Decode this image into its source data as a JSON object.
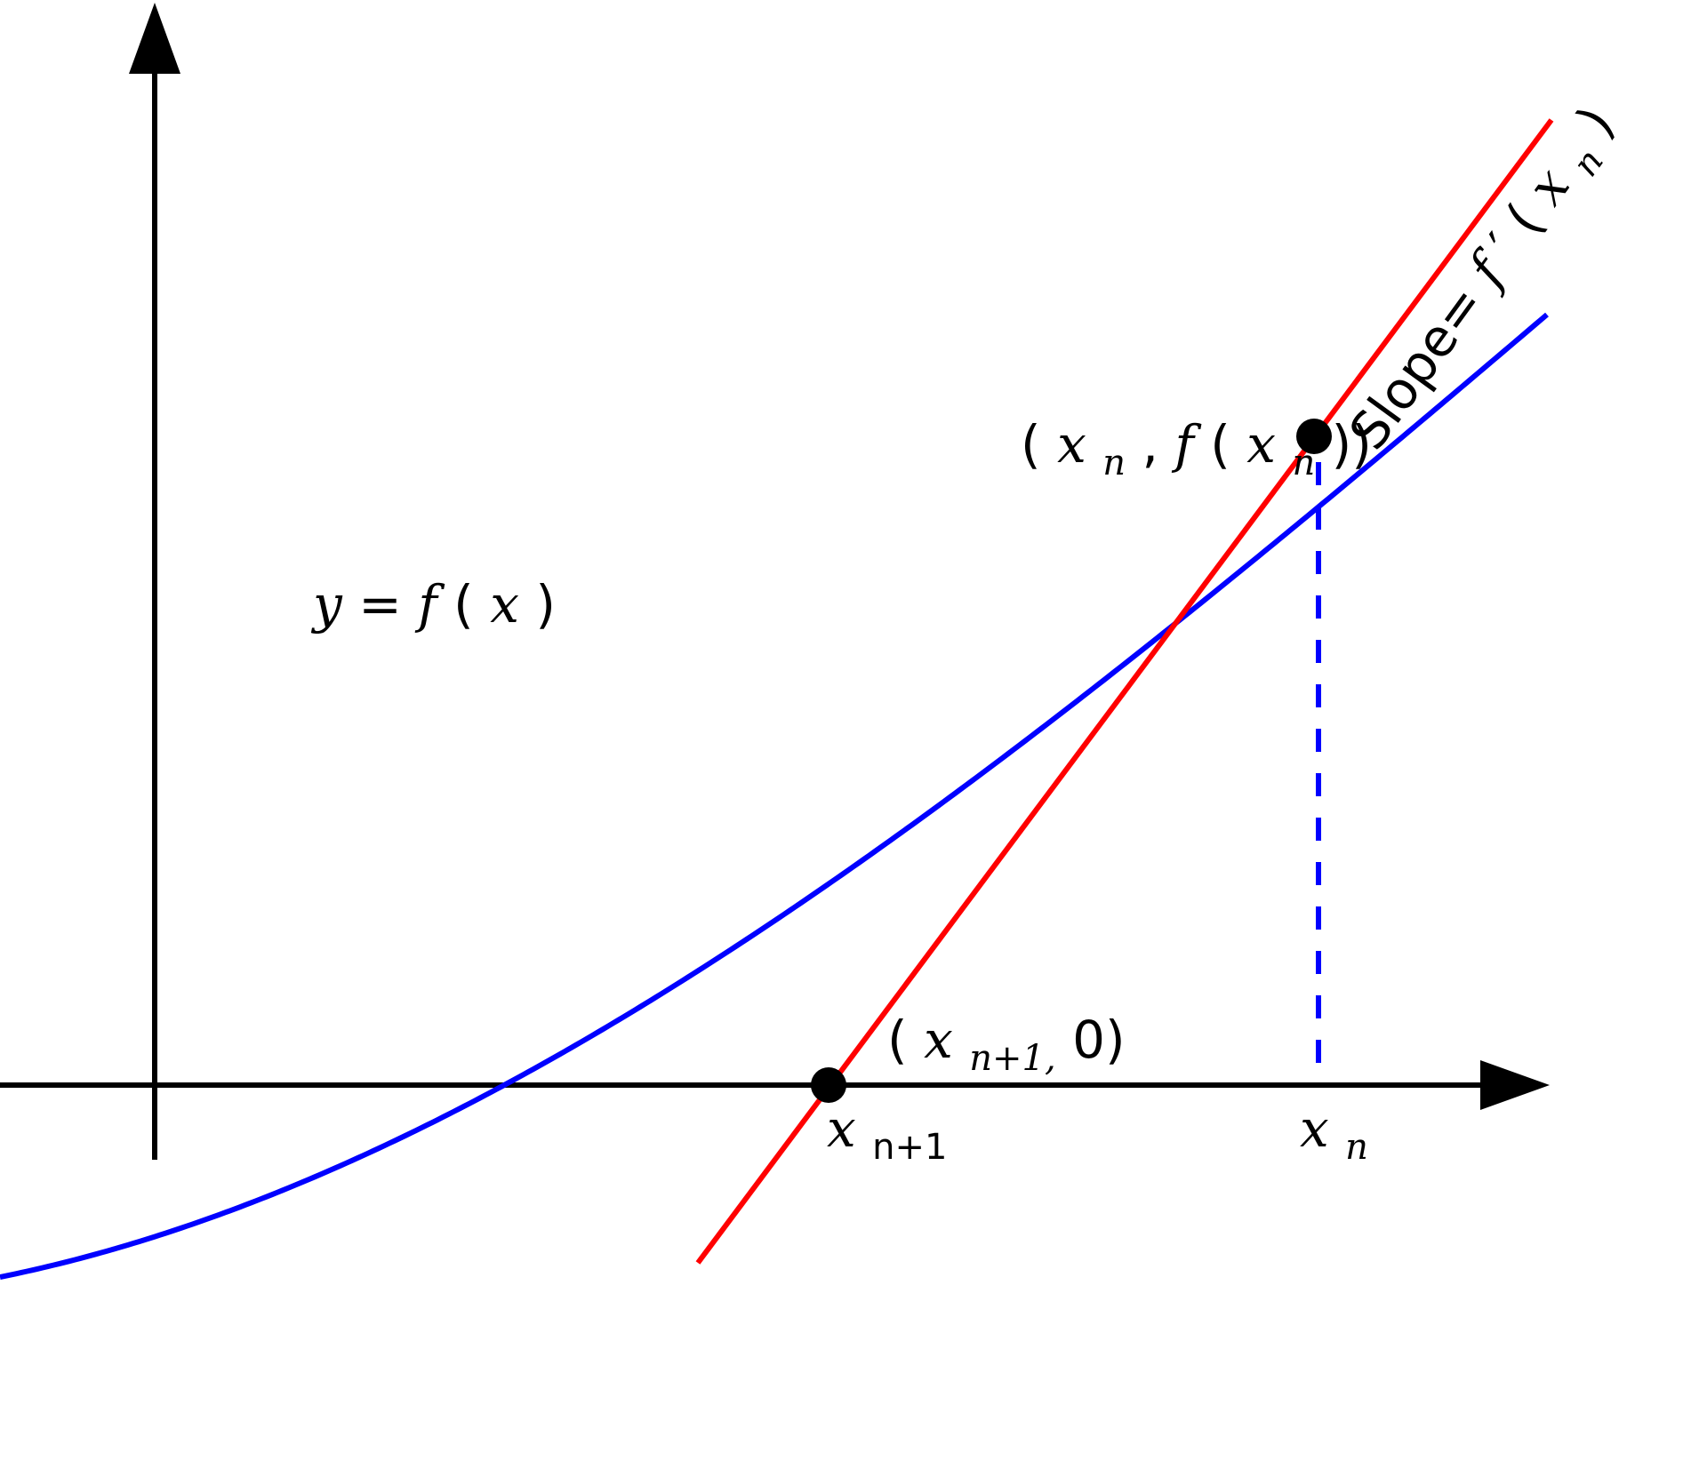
{
  "diagram": {
    "colors": {
      "axes": "#000000",
      "curve": "#0000ff",
      "tangent": "#ff0000",
      "guide": "#0000ff",
      "points": "#000000"
    },
    "labels": {
      "function_label": {
        "y": "y",
        "eq": "= ",
        "f": "f",
        "open": "(",
        "x": "x",
        "close": ")"
      },
      "point_xn": {
        "open": "(",
        "x": "x",
        "sub": "n",
        "comma": ", ",
        "f": "f",
        "open2": "(",
        "x2": "x",
        "sub2": "n",
        "close": "))"
      },
      "point_xn1": {
        "open": "(",
        "x": "x",
        "sub": "n+1,",
        "rest": "0)"
      },
      "tick_xn1": {
        "x": "x",
        "sub": "n+1"
      },
      "tick_xn": {
        "x": "x",
        "sub": "n"
      },
      "slope": {
        "text": "Slope= ",
        "f": "f",
        "prime": "′",
        "open": "(",
        "x": "x",
        "sub": "n",
        "close": ")"
      }
    }
  }
}
